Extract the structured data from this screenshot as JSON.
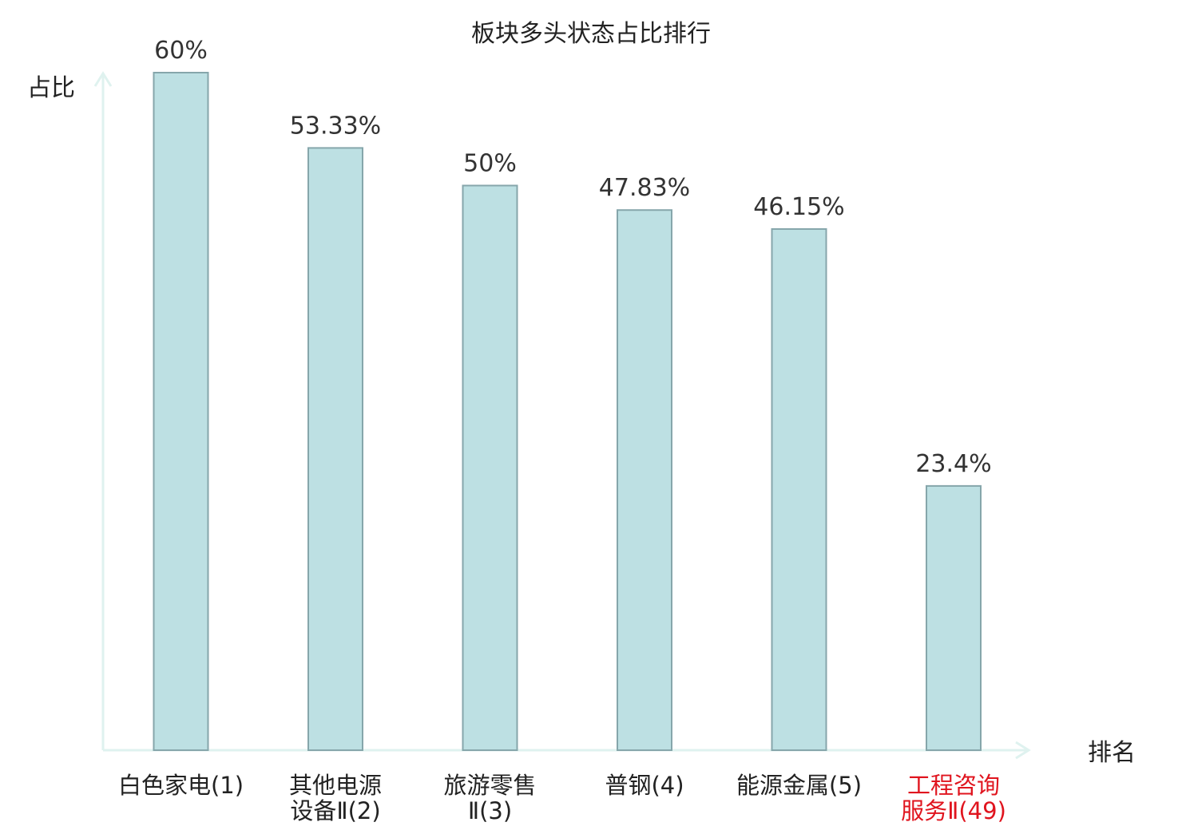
{
  "chart_data": {
    "type": "bar",
    "title": "板块多头状态占比排行",
    "ylabel": "占比",
    "xlabel": "排名",
    "categories": [
      {
        "lines": [
          "白色家电(1)"
        ],
        "highlight": false
      },
      {
        "lines": [
          "其他电源",
          "设备Ⅱ(2)"
        ],
        "highlight": false
      },
      {
        "lines": [
          "旅游零售",
          "Ⅱ(3)"
        ],
        "highlight": false
      },
      {
        "lines": [
          "普钢(4)"
        ],
        "highlight": false
      },
      {
        "lines": [
          "能源金属(5)"
        ],
        "highlight": false
      },
      {
        "lines": [
          "工程咨询",
          "服务Ⅱ(49)"
        ],
        "highlight": true
      }
    ],
    "values": [
      60,
      53.33,
      50,
      47.83,
      46.15,
      23.4
    ],
    "value_labels": [
      "60%",
      "53.33%",
      "50%",
      "47.83%",
      "46.15%",
      "23.4%"
    ],
    "ylim": [
      0,
      60
    ],
    "grid": false,
    "colors": {
      "bar_fill": "#bde0e3",
      "bar_stroke": "#86a6ab",
      "axis": "#dff2ef",
      "highlight_text": "#e0141e"
    }
  }
}
